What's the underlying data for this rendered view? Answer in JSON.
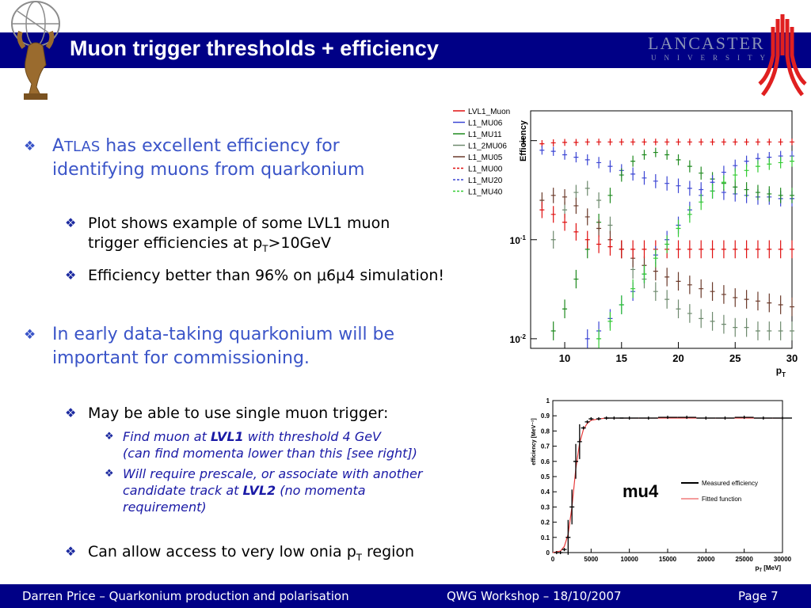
{
  "slide": {
    "title": "Muon trigger thresholds + efficiency",
    "logo_name": "LANCASTER",
    "logo_sub": "UNIVERSITY"
  },
  "bullets": {
    "b1_line1_prefix": "A",
    "b1_line1_caps": "TLAS",
    "b1_line1_rest": " has excellent efficiency for",
    "b1_line2": "identifying muons from quarkonium",
    "b2a_line1": "Plot shows example of some LVL1 muon",
    "b2a_line2_a": "trigger efficiencies at p",
    "b2a_line2_sub": "T",
    "b2a_line2_b": ">10GeV",
    "b2b_a": "Efficiency better than 96% on ",
    "b2b_mu": "μ",
    "b2b_b": "6",
    "b2b_c": "4 simulation!",
    "b1b_line1": "In early data-taking quarkonium will be",
    "b1b_line2": "important for commissioning.",
    "b2c": "May be able to use single muon trigger:",
    "b3a_line1_a": "Find muon at ",
    "b3a_line1_b": "LVL1",
    "b3a_line1_c": " with threshold 4 GeV",
    "b3a_line2": "(can find momenta lower than this [see right])",
    "b3b_line1": "Will require prescale, or associate with another",
    "b3b_line2_a": "candidate track at ",
    "b3b_line2_b": "LVL2",
    "b3b_line2_c": " (no momenta",
    "b3b_line3": "requirement)",
    "b2d_a": "Can allow access to very low onia p",
    "b2d_sub": "T",
    "b2d_b": " region"
  },
  "footer": {
    "left": "Darren Price – Quarkonium production and polarisation",
    "center": "QWG Workshop – 18/10/2007",
    "right": "Page 7"
  },
  "chart_data": [
    {
      "type": "scatter",
      "ylabel": "Efficiency",
      "xlabel": "p_T",
      "x_axis_label_main": "p",
      "x_axis_label_sub": "T",
      "xlim": [
        7,
        30
      ],
      "ylim": [
        0.008,
        2
      ],
      "log_y": true,
      "legend_position": "top-left",
      "x_ticks": [
        10,
        15,
        20,
        25,
        30
      ],
      "x_tick_labels": [
        "10",
        "15",
        "20",
        "25",
        "30"
      ],
      "y_ticks": [
        1,
        0.1,
        0.01
      ],
      "y_tick_labels": [
        "1",
        "10-1",
        "10-2"
      ],
      "y_tick_label_main": [
        "1",
        "10",
        "10"
      ],
      "y_tick_label_sup": [
        "",
        "-1",
        "-2"
      ],
      "series": [
        {
          "name": "LVL1_Muon",
          "color": "#e01010",
          "style": "solid",
          "x": [
            8,
            9,
            10,
            11,
            12,
            13,
            14,
            15,
            16,
            17,
            18,
            19,
            20,
            21,
            22,
            23,
            24,
            25,
            26,
            27,
            28,
            29,
            30
          ],
          "y": [
            0.93,
            0.95,
            0.96,
            0.96,
            0.97,
            0.97,
            0.97,
            0.97,
            0.97,
            0.97,
            0.97,
            0.97,
            0.97,
            0.97,
            0.97,
            0.97,
            0.97,
            0.97,
            0.97,
            0.97,
            0.97,
            0.97,
            0.97
          ]
        },
        {
          "name": "L1_MU06",
          "color": "#3c46d4",
          "style": "solid",
          "x": [
            8,
            9,
            10,
            11,
            12,
            13,
            14,
            15,
            16,
            17,
            18,
            19,
            20,
            21,
            22,
            23,
            24,
            25,
            26,
            27,
            28,
            29,
            30
          ],
          "y": [
            0.8,
            0.78,
            0.72,
            0.68,
            0.64,
            0.6,
            0.55,
            0.5,
            0.46,
            0.42,
            0.39,
            0.37,
            0.35,
            0.33,
            0.32,
            0.31,
            0.3,
            0.29,
            0.28,
            0.27,
            0.27,
            0.26,
            0.26
          ]
        },
        {
          "name": "L1_MU11",
          "color": "#1f8a1f",
          "style": "solid",
          "x": [
            9,
            10,
            11,
            12,
            13,
            14,
            15,
            16,
            17,
            18,
            19,
            20,
            21,
            22,
            23,
            24,
            25,
            26,
            27,
            28,
            29,
            30
          ],
          "y": [
            0.012,
            0.02,
            0.04,
            0.08,
            0.15,
            0.28,
            0.45,
            0.62,
            0.72,
            0.76,
            0.72,
            0.64,
            0.55,
            0.47,
            0.41,
            0.37,
            0.34,
            0.32,
            0.3,
            0.29,
            0.28,
            0.28
          ]
        },
        {
          "name": "L1_2MU06",
          "color": "#6e8a6e",
          "style": "solid",
          "x": [
            9,
            10,
            11,
            12,
            13,
            14,
            15,
            16,
            17,
            18,
            19,
            20,
            21,
            22,
            23,
            24,
            25,
            26,
            27,
            28,
            29,
            30
          ],
          "y": [
            0.1,
            0.2,
            0.3,
            0.33,
            0.25,
            0.14,
            0.08,
            0.05,
            0.04,
            0.03,
            0.025,
            0.02,
            0.018,
            0.016,
            0.015,
            0.014,
            0.013,
            0.013,
            0.012,
            0.012,
            0.012,
            0.012
          ]
        },
        {
          "name": "L1_MU05",
          "color": "#6b3a2a",
          "style": "solid",
          "x": [
            8,
            9,
            10,
            11,
            12,
            13,
            14,
            15,
            16,
            17,
            18,
            19,
            20,
            21,
            22,
            23,
            24,
            25,
            26,
            27,
            28,
            29,
            30
          ],
          "y": [
            0.25,
            0.28,
            0.27,
            0.22,
            0.17,
            0.13,
            0.1,
            0.08,
            0.065,
            0.055,
            0.048,
            0.042,
            0.038,
            0.035,
            0.032,
            0.03,
            0.028,
            0.026,
            0.025,
            0.024,
            0.023,
            0.022,
            0.021
          ]
        },
        {
          "name": "L1_MU00",
          "color": "#e01010",
          "style": "dashed",
          "x": [
            8,
            9,
            10,
            11,
            12,
            13,
            14,
            15,
            16,
            17,
            18,
            19,
            20,
            21,
            22,
            23,
            24,
            25,
            26,
            27,
            28,
            29,
            30
          ],
          "y": [
            0.2,
            0.18,
            0.15,
            0.12,
            0.1,
            0.09,
            0.085,
            0.08,
            0.08,
            0.08,
            0.08,
            0.08,
            0.08,
            0.08,
            0.08,
            0.08,
            0.08,
            0.08,
            0.08,
            0.08,
            0.08,
            0.08,
            0.08
          ]
        },
        {
          "name": "L1_MU20",
          "color": "#3c46d4",
          "style": "dashed",
          "x": [
            12,
            13,
            14,
            15,
            16,
            17,
            18,
            19,
            20,
            21,
            22,
            23,
            24,
            25,
            26,
            27,
            28,
            29,
            30
          ],
          "y": [
            0.01,
            0.012,
            0.016,
            0.022,
            0.03,
            0.045,
            0.07,
            0.1,
            0.14,
            0.2,
            0.28,
            0.38,
            0.48,
            0.56,
            0.62,
            0.66,
            0.68,
            0.7,
            0.7
          ]
        },
        {
          "name": "L1_MU40",
          "color": "#33cc33",
          "style": "dashed",
          "x": [
            13,
            14,
            15,
            16,
            17,
            18,
            19,
            20,
            21,
            22,
            23,
            24,
            25,
            26,
            27,
            28,
            29,
            30
          ],
          "y": [
            0.01,
            0.015,
            0.022,
            0.032,
            0.045,
            0.065,
            0.09,
            0.13,
            0.18,
            0.24,
            0.31,
            0.38,
            0.45,
            0.5,
            0.55,
            0.58,
            0.6,
            0.62
          ]
        }
      ]
    },
    {
      "type": "scatter",
      "ylabel": "efficiency [MeV⁻¹]",
      "xlabel": "pT [MeV]",
      "x_axis_label_main": "p",
      "x_axis_label_sub": "T",
      "x_axis_label_unit": " [MeV]",
      "annotation": "mu4",
      "xlim": [
        0,
        30000
      ],
      "ylim": [
        0,
        1
      ],
      "legend_position": "bottom-right",
      "x_ticks": [
        0,
        5000,
        10000,
        15000,
        20000,
        25000,
        30000
      ],
      "x_tick_labels": [
        "0",
        "5000",
        "10000",
        "15000",
        "20000",
        "25000",
        "30000"
      ],
      "y_ticks": [
        0,
        0.1,
        0.2,
        0.3,
        0.4,
        0.5,
        0.6,
        0.7,
        0.8,
        0.9,
        1
      ],
      "y_tick_labels": [
        "0",
        "0.1",
        "0.2",
        "0.3",
        "0.4",
        "0.5",
        "0.6",
        "0.7",
        "0.8",
        "0.9",
        "1"
      ],
      "series": [
        {
          "name": "Measured efficiency",
          "color": "#000000",
          "style": "points",
          "x": [
            500,
            1000,
            1500,
            2000,
            2500,
            3000,
            3500,
            4000,
            4500,
            5000,
            6000,
            7000,
            8000,
            10000,
            12500,
            15000,
            17500,
            20000,
            22500,
            25000,
            27500,
            30000
          ],
          "y": [
            0.0,
            0.0,
            0.02,
            0.1,
            0.3,
            0.6,
            0.73,
            0.82,
            0.86,
            0.88,
            0.88,
            0.885,
            0.885,
            0.885,
            0.885,
            0.89,
            0.89,
            0.885,
            0.885,
            0.89,
            0.885,
            0.885
          ]
        },
        {
          "name": "Fitted function",
          "color": "#e83a3a",
          "style": "line",
          "x": [
            0,
            1000,
            1500,
            2000,
            2500,
            3000,
            3500,
            4000,
            4500,
            5000,
            6000,
            7000,
            8000,
            10000,
            15000,
            20000,
            25000,
            30000
          ],
          "y": [
            0.0,
            0.01,
            0.04,
            0.12,
            0.3,
            0.55,
            0.72,
            0.81,
            0.85,
            0.87,
            0.88,
            0.885,
            0.885,
            0.885,
            0.885,
            0.885,
            0.885,
            0.885
          ]
        }
      ]
    }
  ]
}
